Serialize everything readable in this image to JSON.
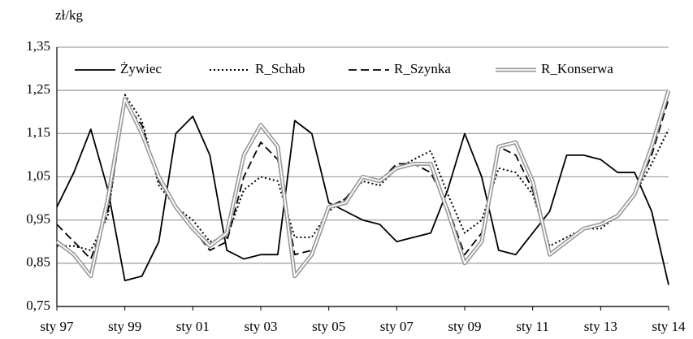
{
  "chart_data": {
    "type": "line",
    "y_unit": "zł/kg",
    "categories": [
      "sty 97",
      null,
      null,
      null,
      "sty 99",
      null,
      null,
      null,
      "sty 01",
      null,
      null,
      null,
      "sty 03",
      null,
      null,
      null,
      "sty 05",
      null,
      null,
      null,
      "sty 07",
      null,
      null,
      null,
      "sty 09",
      null,
      null,
      null,
      "sty 11",
      null,
      null,
      null,
      "sty 13",
      null,
      null,
      null,
      "sty 14"
    ],
    "series": [
      {
        "name": "Żywiec",
        "color": "#000000",
        "style": "solid",
        "values": [
          0.98,
          1.06,
          1.16,
          1.02,
          0.81,
          0.82,
          0.9,
          1.15,
          1.19,
          1.1,
          0.88,
          0.86,
          0.87,
          0.87,
          1.18,
          1.15,
          0.99,
          0.97,
          0.95,
          0.94,
          0.9,
          0.91,
          0.92,
          1.02,
          1.15,
          1.05,
          0.88,
          0.87,
          0.92,
          0.97,
          1.1,
          1.1,
          1.09,
          1.06,
          1.06,
          0.97,
          0.8
        ]
      },
      {
        "name": "R_Schab",
        "color": "#000000",
        "style": "dotted",
        "values": [
          0.89,
          0.89,
          0.88,
          0.96,
          1.24,
          1.18,
          1.03,
          0.98,
          0.95,
          0.9,
          0.91,
          1.02,
          1.05,
          1.04,
          0.91,
          0.91,
          0.97,
          1.0,
          1.04,
          1.03,
          1.07,
          1.09,
          1.11,
          1.01,
          0.92,
          0.95,
          1.07,
          1.06,
          1.01,
          0.89,
          0.91,
          0.93,
          0.93,
          0.96,
          1.01,
          1.08,
          1.16
        ]
      },
      {
        "name": "R_Szynka",
        "color": "#000000",
        "style": "dashed",
        "values": [
          0.94,
          0.9,
          0.86,
          0.97,
          1.22,
          1.17,
          1.04,
          0.98,
          0.93,
          0.88,
          0.9,
          1.05,
          1.13,
          1.09,
          0.87,
          0.88,
          0.98,
          1.0,
          1.05,
          1.04,
          1.08,
          1.08,
          1.06,
          0.98,
          0.87,
          0.92,
          1.12,
          1.1,
          1.02,
          0.87,
          0.9,
          0.93,
          0.94,
          0.96,
          1.01,
          1.1,
          1.23
        ]
      },
      {
        "name": "R_Konserwa",
        "color": "#999999",
        "style": "double",
        "values": [
          0.9,
          0.87,
          0.82,
          1.0,
          1.23,
          1.15,
          1.05,
          0.98,
          0.93,
          0.89,
          0.92,
          1.1,
          1.17,
          1.12,
          0.82,
          0.87,
          0.98,
          0.99,
          1.05,
          1.04,
          1.07,
          1.08,
          1.08,
          0.97,
          0.85,
          0.9,
          1.12,
          1.13,
          1.04,
          0.87,
          0.9,
          0.93,
          0.94,
          0.96,
          1.01,
          1.12,
          1.25
        ]
      }
    ],
    "ylim": [
      0.75,
      1.35
    ],
    "yticks": [
      {
        "value": 0.75,
        "label": "0,75"
      },
      {
        "value": 0.85,
        "label": "0,85"
      },
      {
        "value": 0.95,
        "label": "0,95"
      },
      {
        "value": 1.05,
        "label": "1,05"
      },
      {
        "value": 1.15,
        "label": "1,15"
      },
      {
        "value": 1.25,
        "label": "1,25"
      },
      {
        "value": 1.35,
        "label": "1,35"
      }
    ],
    "grid": true,
    "legend": "top"
  }
}
